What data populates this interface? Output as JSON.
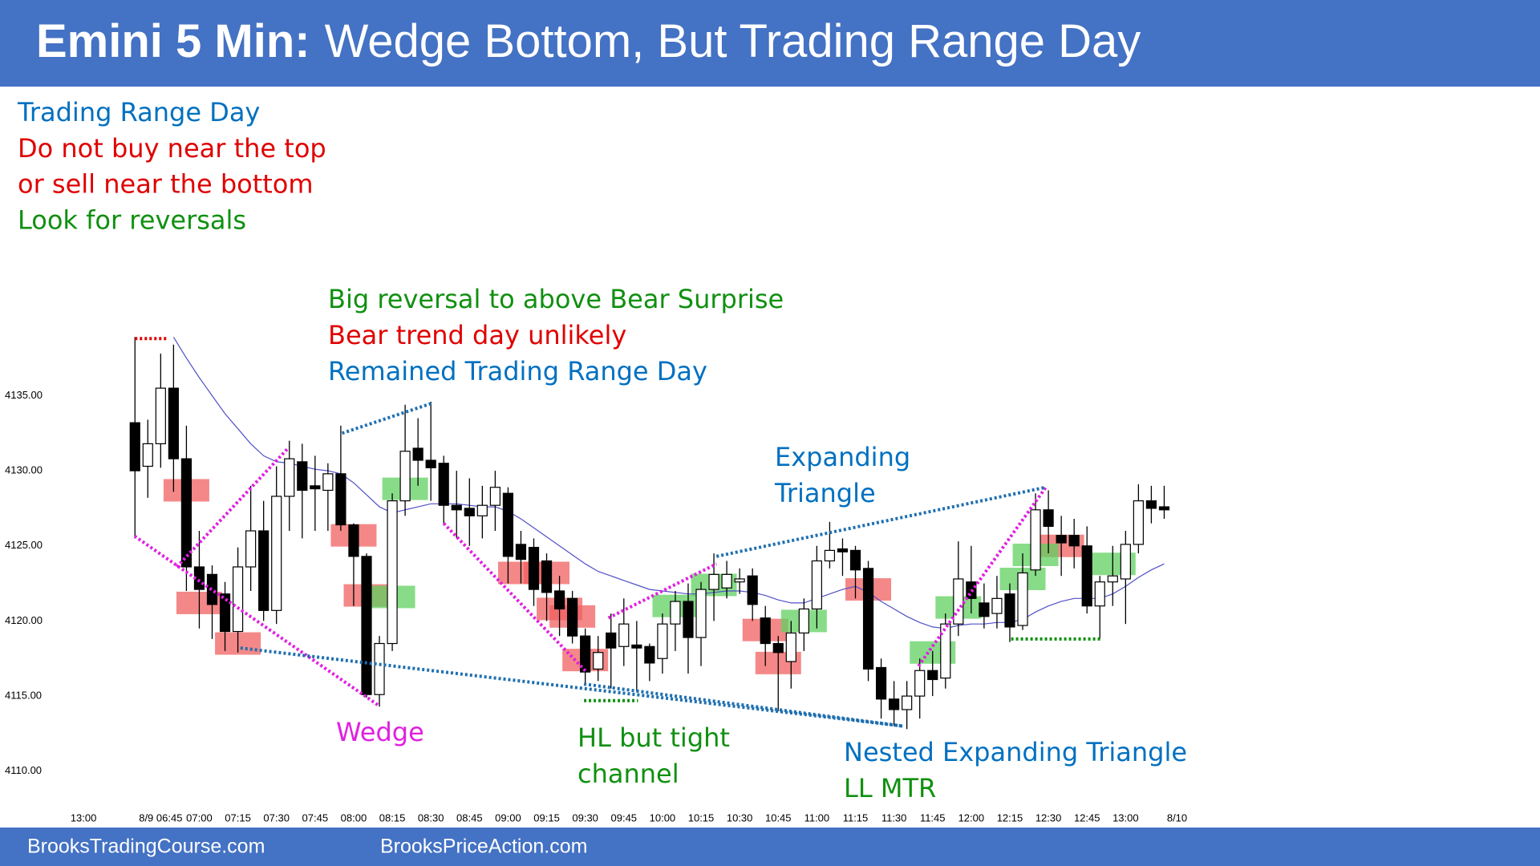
{
  "header": {
    "title_bold": "Emini 5 Min:",
    "title": "Wedge Bottom, But Trading Range Day",
    "color": "#4472c4"
  },
  "notes": [
    {
      "text": "Trading Range Day",
      "color": "#0070c0"
    },
    {
      "text": "Do not buy near the top",
      "color": "#e00000"
    },
    {
      "text": "or sell near the bottom",
      "color": "#e00000"
    },
    {
      "text": "Look for reversals",
      "color": "#109010"
    }
  ],
  "annotations": [
    {
      "lines": [
        {
          "text": "Big reversal to above Bear Surprise",
          "color": "#109010"
        },
        {
          "text": "Bear trend day unlikely",
          "color": "#e00000"
        },
        {
          "text": "Remained Trading Range Day",
          "color": "#0070c0"
        }
      ]
    },
    {
      "lines": [
        {
          "text": "Wedge",
          "color": "#e020e0"
        }
      ]
    },
    {
      "lines": [
        {
          "text": "HL but tight",
          "color": "#109010"
        },
        {
          "text": "channel",
          "color": "#109010"
        }
      ]
    },
    {
      "lines": [
        {
          "text": "Expanding",
          "color": "#0070c0"
        },
        {
          "text": "Triangle",
          "color": "#0070c0"
        }
      ]
    },
    {
      "lines": [
        {
          "text": "Nested Expanding Triangle",
          "color": "#0070c0"
        },
        {
          "text": "LL MTR",
          "color": "#109010"
        }
      ]
    }
  ],
  "chart_data": {
    "type": "candlestick",
    "categories": [
      "13:00",
      null,
      null,
      null,
      null,
      null,
      "8/9 06:45",
      null,
      null,
      "07:00",
      null,
      null,
      "07:15",
      null,
      null,
      "07:30",
      null,
      null,
      "07:45",
      null,
      null,
      "08:00",
      null,
      null,
      "08:15",
      null,
      null,
      "08:30",
      null,
      null,
      "08:45",
      null,
      null,
      "09:00",
      null,
      null,
      "09:15",
      null,
      null,
      "09:30",
      null,
      null,
      "09:45",
      null,
      null,
      "10:00",
      null,
      null,
      "10:15",
      null,
      null,
      "10:30",
      null,
      null,
      "10:45",
      null,
      null,
      "11:00",
      null,
      null,
      "11:15",
      null,
      null,
      "11:30",
      null,
      null,
      "11:45",
      null,
      null,
      "12:00",
      null,
      null,
      "12:15",
      null,
      null,
      "12:30",
      null,
      null,
      "12:45",
      null,
      null,
      "13:00",
      null,
      null,
      null,
      "8/10"
    ],
    "open": [
      null,
      null,
      null,
      null,
      4133.2,
      4130.3,
      4131.8,
      4135.5,
      4130.8,
      4123.6,
      4123.1,
      4121.8,
      4119.3,
      4123.6,
      4126.0,
      4120.7,
      4128.3,
      4130.6,
      4129.0,
      4128.7,
      4129.8,
      4126.4,
      4124.3,
      4115.1,
      4118.5,
      4128.0,
      4131.5,
      4130.7,
      4130.5,
      4127.7,
      4127.5,
      4127.0,
      4127.7,
      4128.5,
      4125.1,
      4124.9,
      4124.0,
      4122.0,
      4121.5,
      4119.0,
      4116.8,
      4119.2,
      4118.3,
      4118.4,
      4118.3,
      4117.5,
      4119.8,
      4121.3,
      4118.9,
      4122.1,
      4122.2,
      4122.6,
      4123.0,
      4120.2,
      4118.5,
      4117.3,
      4119.2,
      4120.8,
      4124.0,
      4124.8,
      4124.7,
      4123.5,
      4116.9,
      4114.8,
      4114.1,
      4115.0,
      4116.7,
      4116.2,
      4119.8,
      4122.6,
      4121.2,
      4120.5,
      4121.8,
      4119.7,
      4123.4,
      4127.4,
      4125.7,
      4125.7,
      4125.0,
      4121.0,
      4122.6,
      4122.8,
      4125.1,
      4128.0,
      4127.6,
      null
    ],
    "high": [
      null,
      null,
      null,
      null,
      4138.9,
      4133.4,
      4137.8,
      4138.4,
      4133.0,
      4126.0,
      4123.7,
      4122.6,
      4124.9,
      4129.0,
      4128.0,
      4130.3,
      4132.0,
      4131.8,
      4131.0,
      4130.5,
      4133.0,
      4126.5,
      4124.5,
      4119.0,
      4128.5,
      4134.4,
      4133.5,
      4134.6,
      4131.0,
      4130.0,
      4129.5,
      4129.0,
      4130.0,
      4128.9,
      4126.0,
      4125.5,
      4124.5,
      4123.0,
      4122.0,
      4119.5,
      4119.0,
      4120.5,
      4121.5,
      4120.0,
      4118.5,
      4120.5,
      4122.0,
      4122.5,
      4122.6,
      4124.5,
      4124.0,
      4123.5,
      4123.5,
      4121.0,
      4119.0,
      4120.0,
      4121.5,
      4125.0,
      4126.6,
      4125.5,
      4125.0,
      4124.0,
      4117.5,
      4116.0,
      4116.0,
      4117.5,
      4118.0,
      4120.5,
      4125.3,
      4125.0,
      4122.5,
      4123.0,
      4122.5,
      4124.5,
      4128.5,
      4128.7,
      4127.0,
      4126.8,
      4126.3,
      4123.0,
      4125.0,
      4126.0,
      4129.1,
      4129.0,
      4129.0,
      null
    ],
    "low": [
      null,
      null,
      null,
      null,
      4125.5,
      4128.2,
      4130.2,
      4128.6,
      4122.0,
      4119.5,
      4118.8,
      4118.0,
      4117.9,
      4122.0,
      4120.0,
      4119.8,
      4126.0,
      4125.5,
      4126.0,
      4126.0,
      4126.0,
      4121.0,
      4114.9,
      4114.3,
      4118.0,
      4127.0,
      4129.0,
      4128.0,
      4126.5,
      4125.5,
      4125.0,
      4125.5,
      4126.0,
      4122.5,
      4122.5,
      4121.0,
      4120.0,
      4119.0,
      4118.5,
      4115.7,
      4116.0,
      4115.5,
      4117.0,
      4115.3,
      4116.0,
      4116.5,
      4118.0,
      4116.5,
      4117.0,
      4120.0,
      4121.5,
      4121.8,
      4120.0,
      4117.0,
      4114.0,
      4115.5,
      4118.0,
      4119.5,
      4123.5,
      4123.0,
      4121.5,
      4116.0,
      4113.5,
      4113.0,
      4112.8,
      4113.5,
      4115.0,
      4115.5,
      4119.0,
      4120.5,
      4119.5,
      4119.5,
      4118.6,
      4119.4,
      4123.0,
      4124.5,
      4123.0,
      4123.5,
      4120.5,
      4118.8,
      4121.0,
      4119.8,
      4124.5,
      4126.5,
      4126.8,
      null
    ],
    "close": [
      null,
      null,
      null,
      null,
      4130.0,
      4131.8,
      4135.5,
      4130.8,
      4123.6,
      4122.1,
      4121.1,
      4119.3,
      4123.6,
      4126.0,
      4120.7,
      4128.3,
      4130.8,
      4128.7,
      4128.8,
      4129.8,
      4126.4,
      4124.3,
      4115.1,
      4118.5,
      4128.0,
      4131.3,
      4130.7,
      4130.2,
      4127.7,
      4127.4,
      4127.0,
      4127.7,
      4128.9,
      4124.3,
      4124.1,
      4122.1,
      4121.9,
      4120.8,
      4119.0,
      4116.6,
      4117.9,
      4118.2,
      4119.8,
      4118.2,
      4117.2,
      4119.8,
      4121.3,
      4118.9,
      4122.1,
      4123.1,
      4123.1,
      4122.8,
      4121.1,
      4118.5,
      4117.9,
      4119.2,
      4120.8,
      4124.0,
      4124.7,
      4124.6,
      4123.4,
      4116.8,
      4114.8,
      4114.1,
      4115.0,
      4116.7,
      4116.1,
      4119.8,
      4122.8,
      4121.5,
      4120.3,
      4121.5,
      4119.6,
      4123.2,
      4127.4,
      4126.3,
      4125.2,
      4125.0,
      4121.0,
      4122.6,
      4123.0,
      4125.1,
      4128.0,
      4127.5,
      4127.4,
      null
    ],
    "up_color": "#ffffff",
    "down_color": "#000000",
    "moving_average": {
      "color": "#5050c8",
      "values": [
        null,
        null,
        null,
        null,
        null,
        null,
        null,
        4138.9,
        4137.5,
        4136.2,
        4135,
        4133.8,
        4132.8,
        4131.8,
        4131,
        4130.6,
        4130.5,
        4130.3,
        4130.1,
        4130,
        4129.8,
        4129.2,
        4128.4,
        4127.6,
        4127.2,
        4127.4,
        4127.6,
        4127.8,
        4127.8,
        4127.8,
        4127.7,
        4127.6,
        4127.6,
        4127.3,
        4126.8,
        4126.2,
        4125.6,
        4125,
        4124.4,
        4123.8,
        4123.3,
        4123,
        4122.7,
        4122.4,
        4122.1,
        4122,
        4121.9,
        4121.8,
        4121.8,
        4121.9,
        4122,
        4122,
        4121.9,
        4121.7,
        4121.4,
        4121.2,
        4121.2,
        4121.5,
        4121.8,
        4122.1,
        4122.3,
        4121.9,
        4121.3,
        4120.8,
        4120.3,
        4119.9,
        4119.6,
        4119.5,
        4119.7,
        4119.8,
        4119.8,
        4119.9,
        4119.9,
        4120.1,
        4120.6,
        4121,
        4121.3,
        4121.5,
        4121.5,
        4121.5,
        4121.8,
        4122.3,
        4122.9,
        4123.4,
        4123.8,
        null
      ]
    },
    "ylim": [
      4108,
      4140
    ],
    "yticks": [
      {
        "value": 4110,
        "label": "4110.00"
      },
      {
        "value": 4115,
        "label": "4115.00"
      },
      {
        "value": 4120,
        "label": "4120.00"
      },
      {
        "value": 4125,
        "label": "4125.00"
      },
      {
        "value": 4130,
        "label": "4130.00"
      },
      {
        "value": 4135,
        "label": "4135.00"
      }
    ],
    "signals": [
      {
        "color": "#f06060",
        "slot": 8,
        "price": 4128.7
      },
      {
        "color": "#f06060",
        "slot": 9,
        "price": 4121.2
      },
      {
        "color": "#f06060",
        "slot": 12,
        "price": 4118.5
      },
      {
        "color": "#f06060",
        "slot": 21,
        "price": 4125.7
      },
      {
        "color": "#f06060",
        "slot": 22,
        "price": 4121.7
      },
      {
        "color": "#f06060",
        "slot": 34,
        "price": 4123.2
      },
      {
        "color": "#f06060",
        "slot": 36,
        "price": 4123.2
      },
      {
        "color": "#f06060",
        "slot": 37,
        "price": 4120.8
      },
      {
        "color": "#f06060",
        "slot": 38,
        "price": 4120.3
      },
      {
        "color": "#f06060",
        "slot": 39,
        "price": 4117.4
      },
      {
        "color": "#f06060",
        "slot": 53,
        "price": 4119.4
      },
      {
        "color": "#f06060",
        "slot": 54,
        "price": 4117.2
      },
      {
        "color": "#f06060",
        "slot": 61,
        "price": 4122.1
      },
      {
        "color": "#f06060",
        "slot": 76,
        "price": 4125.0
      },
      {
        "color": "#60d060",
        "slot": 25,
        "price": 4128.8
      },
      {
        "color": "#60d060",
        "slot": 24,
        "price": 4121.6
      },
      {
        "color": "#60d060",
        "slot": 46,
        "price": 4121.0
      },
      {
        "color": "#60d060",
        "slot": 49,
        "price": 4122.4
      },
      {
        "color": "#60d060",
        "slot": 56,
        "price": 4120.0
      },
      {
        "color": "#60d060",
        "slot": 66,
        "price": 4117.9
      },
      {
        "color": "#60d060",
        "slot": 68,
        "price": 4120.9
      },
      {
        "color": "#60d060",
        "slot": 73,
        "price": 4122.8
      },
      {
        "color": "#60d060",
        "slot": 74,
        "price": 4124.4
      },
      {
        "color": "#60d060",
        "slot": 80,
        "price": 4123.8
      }
    ],
    "trendlines": [
      {
        "color": "#e020e0",
        "points": [
          [
            3.97,
            4125.65
          ],
          [
            22.9,
            4114.4
          ]
        ]
      },
      {
        "color": "#e020e0",
        "points": [
          [
            7.25,
            4123.6
          ],
          [
            15.9,
            4131.5
          ]
        ]
      },
      {
        "color": "#e020e0",
        "points": [
          [
            28.0,
            4126.5
          ],
          [
            39.1,
            4116.6
          ]
        ]
      },
      {
        "color": "#e020e0",
        "points": [
          [
            40.8,
            4120.2
          ],
          [
            49.2,
            4123.8
          ]
        ]
      },
      {
        "color": "#e020e0",
        "points": [
          [
            64.9,
            4117.0
          ],
          [
            74.8,
            4128.9
          ]
        ]
      },
      {
        "color": "#1f6fb0",
        "points": [
          [
            20.1,
            4132.5
          ],
          [
            27.1,
            4134.5
          ]
        ]
      },
      {
        "color": "#1f6fb0",
        "points": [
          [
            12.2,
            4118.2
          ],
          [
            63.7,
            4113.0
          ]
        ]
      },
      {
        "color": "#1f6fb0",
        "points": [
          [
            38.9,
            4115.8
          ],
          [
            63.7,
            4113.0
          ]
        ]
      },
      {
        "color": "#1f6fb0",
        "points": [
          [
            49.2,
            4124.3
          ],
          [
            74.8,
            4128.9
          ]
        ]
      },
      {
        "color": "#e00000",
        "points": [
          [
            4,
            4138.8
          ],
          [
            6.5,
            4138.8
          ]
        ]
      },
      {
        "color": "#109010",
        "points": [
          [
            38.9,
            4114.7
          ],
          [
            43.1,
            4114.7
          ]
        ]
      },
      {
        "color": "#109010",
        "points": [
          [
            72.1,
            4118.8
          ],
          [
            79.2,
            4118.8
          ]
        ]
      }
    ]
  },
  "footer": {
    "left": "BrooksTradingCourse.com",
    "right": "BrooksPriceAction.com"
  }
}
